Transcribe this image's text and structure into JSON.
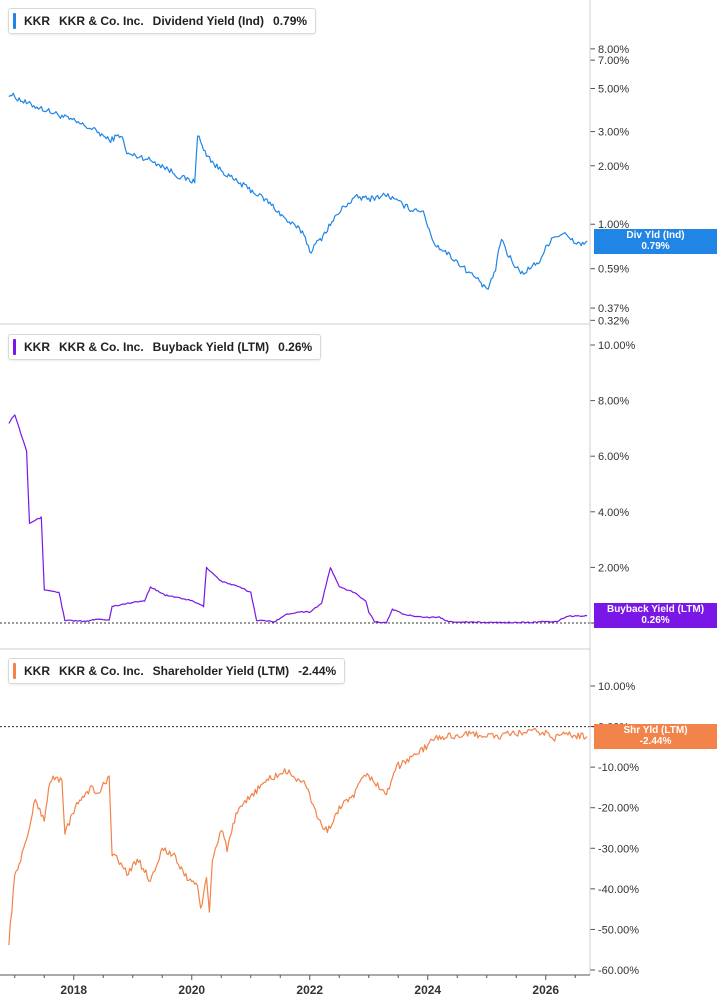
{
  "colors": {
    "div": "#2185e5",
    "buyback": "#7a16e6",
    "shr": "#f2834a",
    "axis": "#555555",
    "grid": "#cfcfcf"
  },
  "panels": [
    {
      "ticker": "KKR",
      "company": "KKR & Co. Inc.",
      "metric": "Dividend Yield (Ind)",
      "value": "0.79%",
      "tag_line1": "Div Yld (Ind)",
      "tag_line2": "0.79%"
    },
    {
      "ticker": "KKR",
      "company": "KKR & Co. Inc.",
      "metric": "Buyback Yield (LTM)",
      "value": "0.26%",
      "tag_line1": "Buyback Yield (LTM)",
      "tag_line2": "0.26%"
    },
    {
      "ticker": "KKR",
      "company": "KKR & Co. Inc.",
      "metric": "Shareholder Yield (LTM)",
      "value": "-2.44%",
      "tag_line1": "Shr Yld (LTM)",
      "tag_line2": "-2.44%"
    }
  ],
  "chart_data": [
    {
      "type": "line",
      "series": [
        {
          "name": "Dividend Yield (Ind)",
          "color": "#2185e5",
          "points": [
            [
              2016.9,
              4.7
            ],
            [
              2017.2,
              4.2
            ],
            [
              2017.6,
              3.8
            ],
            [
              2018.0,
              3.4
            ],
            [
              2018.4,
              3.0
            ],
            [
              2018.6,
              2.7
            ],
            [
              2018.8,
              2.9
            ],
            [
              2018.9,
              2.3
            ],
            [
              2019.2,
              2.2
            ],
            [
              2019.5,
              2.0
            ],
            [
              2019.8,
              1.75
            ],
            [
              2020.05,
              1.65
            ],
            [
              2020.1,
              2.9
            ],
            [
              2020.2,
              2.4
            ],
            [
              2020.4,
              2.0
            ],
            [
              2020.7,
              1.7
            ],
            [
              2021.0,
              1.5
            ],
            [
              2021.3,
              1.3
            ],
            [
              2021.6,
              1.05
            ],
            [
              2021.9,
              0.9
            ],
            [
              2022.0,
              0.72
            ],
            [
              2022.2,
              0.85
            ],
            [
              2022.4,
              1.05
            ],
            [
              2022.6,
              1.25
            ],
            [
              2022.8,
              1.38
            ],
            [
              2023.0,
              1.35
            ],
            [
              2023.3,
              1.42
            ],
            [
              2023.5,
              1.3
            ],
            [
              2023.7,
              1.2
            ],
            [
              2023.9,
              1.18
            ],
            [
              2024.1,
              0.8
            ],
            [
              2024.3,
              0.72
            ],
            [
              2024.6,
              0.6
            ],
            [
              2024.9,
              0.5
            ],
            [
              2025.0,
              0.45
            ],
            [
              2025.15,
              0.58
            ],
            [
              2025.25,
              0.85
            ],
            [
              2025.35,
              0.7
            ],
            [
              2025.5,
              0.6
            ],
            [
              2025.6,
              0.56
            ],
            [
              2025.75,
              0.6
            ],
            [
              2025.9,
              0.65
            ],
            [
              2026.1,
              0.85
            ],
            [
              2026.3,
              0.9
            ],
            [
              2026.45,
              0.82
            ],
            [
              2026.6,
              0.79
            ],
            [
              2026.7,
              0.82
            ]
          ]
        }
      ],
      "y_scale": "log",
      "y_ticks": [
        "8.00%",
        "7.00%",
        "5.00%",
        "3.00%",
        "2.00%",
        "1.00%",
        "0.59%",
        "0.37%",
        "0.32%"
      ],
      "y_tick_values": [
        8,
        7,
        5,
        3,
        2,
        1,
        0.59,
        0.37,
        0.32
      ],
      "ylim": [
        0.31,
        11
      ]
    },
    {
      "type": "line",
      "series": [
        {
          "name": "Buyback Yield (LTM)",
          "color": "#7a16e6",
          "points": [
            [
              2016.9,
              7.2
            ],
            [
              2017.0,
              7.5
            ],
            [
              2017.2,
              6.2
            ],
            [
              2017.25,
              3.6
            ],
            [
              2017.45,
              3.8
            ],
            [
              2017.5,
              1.2
            ],
            [
              2017.75,
              1.1
            ],
            [
              2017.85,
              0.1
            ],
            [
              2018.2,
              0.05
            ],
            [
              2018.4,
              0.15
            ],
            [
              2018.6,
              0.1
            ],
            [
              2018.65,
              0.6
            ],
            [
              2018.9,
              0.7
            ],
            [
              2019.2,
              0.8
            ],
            [
              2019.3,
              1.3
            ],
            [
              2019.55,
              1.0
            ],
            [
              2019.8,
              0.9
            ],
            [
              2020.0,
              0.8
            ],
            [
              2020.2,
              0.6
            ],
            [
              2020.25,
              2.0
            ],
            [
              2020.5,
              1.5
            ],
            [
              2020.8,
              1.3
            ],
            [
              2021.0,
              1.1
            ],
            [
              2021.1,
              0.1
            ],
            [
              2021.4,
              0.05
            ],
            [
              2021.6,
              0.3
            ],
            [
              2021.8,
              0.4
            ],
            [
              2022.0,
              0.4
            ],
            [
              2022.2,
              0.7
            ],
            [
              2022.35,
              2.0
            ],
            [
              2022.5,
              1.3
            ],
            [
              2022.75,
              1.1
            ],
            [
              2022.95,
              0.8
            ],
            [
              2023.0,
              0.4
            ],
            [
              2023.1,
              0.05
            ],
            [
              2023.3,
              0.0
            ],
            [
              2023.4,
              0.5
            ],
            [
              2023.6,
              0.3
            ],
            [
              2024.0,
              0.2
            ],
            [
              2024.2,
              0.2
            ],
            [
              2024.35,
              0.05
            ],
            [
              2025.0,
              0.02
            ],
            [
              2025.6,
              0.02
            ],
            [
              2026.2,
              0.05
            ],
            [
              2026.35,
              0.24
            ],
            [
              2026.7,
              0.26
            ]
          ]
        }
      ],
      "y_ticks": [
        "10.00%",
        "8.00%",
        "6.00%",
        "4.00%",
        "2.00%",
        "0.00%"
      ],
      "y_tick_values": [
        10,
        8,
        6,
        4,
        2,
        0
      ],
      "ylim": [
        0,
        10
      ]
    },
    {
      "type": "line",
      "series": [
        {
          "name": "Shareholder Yield (LTM)",
          "color": "#f2834a",
          "points": [
            [
              2016.9,
              -53
            ],
            [
              2017.0,
              -37
            ],
            [
              2017.2,
              -28
            ],
            [
              2017.35,
              -18
            ],
            [
              2017.5,
              -23
            ],
            [
              2017.6,
              -13
            ],
            [
              2017.8,
              -13
            ],
            [
              2017.85,
              -26
            ],
            [
              2018.1,
              -18
            ],
            [
              2018.3,
              -15
            ],
            [
              2018.4,
              -17
            ],
            [
              2018.6,
              -12
            ],
            [
              2018.65,
              -31
            ],
            [
              2018.9,
              -36
            ],
            [
              2019.1,
              -33
            ],
            [
              2019.3,
              -38
            ],
            [
              2019.5,
              -30
            ],
            [
              2019.7,
              -32
            ],
            [
              2019.9,
              -37
            ],
            [
              2020.1,
              -39
            ],
            [
              2020.15,
              -45
            ],
            [
              2020.25,
              -38
            ],
            [
              2020.3,
              -46
            ],
            [
              2020.35,
              -33
            ],
            [
              2020.5,
              -25
            ],
            [
              2020.6,
              -30
            ],
            [
              2020.75,
              -22
            ],
            [
              2021.0,
              -17
            ],
            [
              2021.3,
              -13
            ],
            [
              2021.6,
              -11
            ],
            [
              2021.9,
              -14
            ],
            [
              2022.0,
              -17
            ],
            [
              2022.15,
              -23
            ],
            [
              2022.3,
              -26
            ],
            [
              2022.5,
              -20
            ],
            [
              2022.7,
              -18
            ],
            [
              2022.9,
              -13
            ],
            [
              2023.0,
              -12
            ],
            [
              2023.3,
              -17
            ],
            [
              2023.45,
              -10
            ],
            [
              2023.6,
              -9
            ],
            [
              2023.75,
              -7
            ],
            [
              2023.9,
              -6
            ],
            [
              2024.1,
              -3
            ],
            [
              2024.3,
              -2.5
            ],
            [
              2024.6,
              -2
            ],
            [
              2024.9,
              -2
            ],
            [
              2025.2,
              -2.5
            ],
            [
              2025.35,
              -2
            ],
            [
              2025.6,
              -1.5
            ],
            [
              2025.8,
              -1.3
            ],
            [
              2026.0,
              -1.6
            ],
            [
              2026.15,
              -2.8
            ],
            [
              2026.3,
              -1.8
            ],
            [
              2026.5,
              -2.2
            ],
            [
              2026.7,
              -2.44
            ]
          ]
        }
      ],
      "y_ticks": [
        "10.00%",
        "0.00%",
        "-10.00%",
        "-20.00%",
        "-30.00%",
        "-40.00%",
        "-50.00%",
        "-60.00%"
      ],
      "y_tick_values": [
        10,
        0,
        -10,
        -20,
        -30,
        -40,
        -50,
        -60
      ],
      "ylim": [
        -60,
        10
      ]
    }
  ],
  "x_axis": {
    "ticks": [
      "2018",
      "2020",
      "2022",
      "2024",
      "2026"
    ],
    "tick_values": [
      2018,
      2020,
      2022,
      2024,
      2026
    ],
    "xlim": [
      2016.75,
      2026.75
    ]
  }
}
